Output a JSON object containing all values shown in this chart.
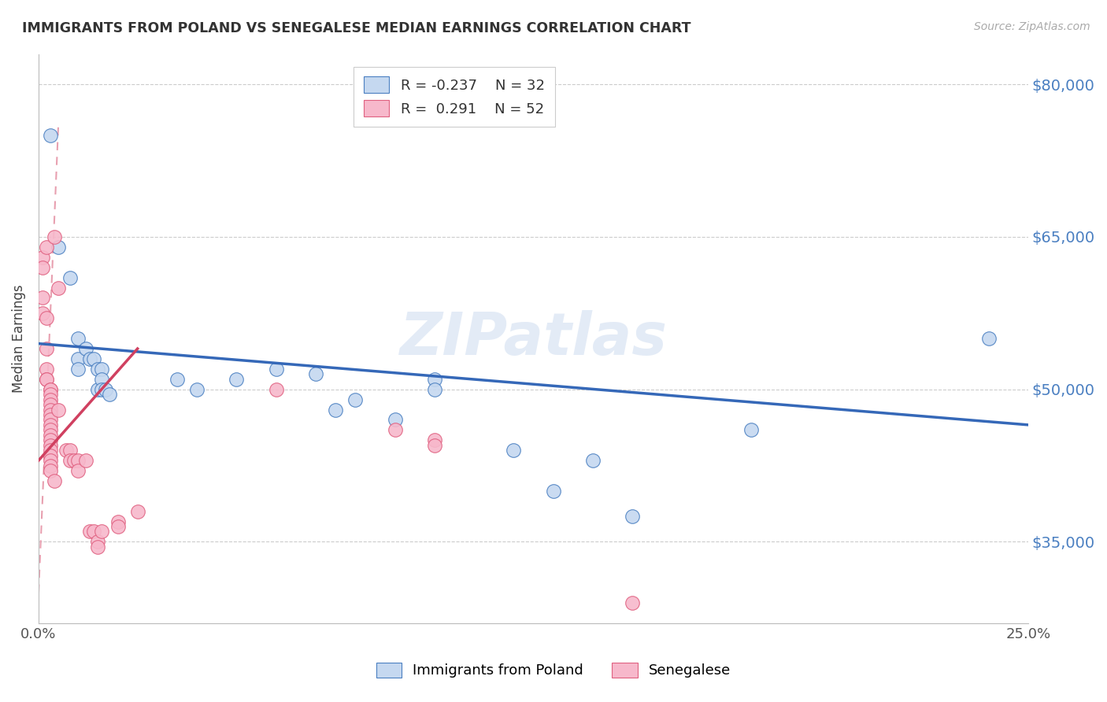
{
  "title": "IMMIGRANTS FROM POLAND VS SENEGALESE MEDIAN EARNINGS CORRELATION CHART",
  "source": "Source: ZipAtlas.com",
  "ylabel": "Median Earnings",
  "yticks": [
    35000,
    50000,
    65000,
    80000
  ],
  "ytick_labels": [
    "$35,000",
    "$50,000",
    "$65,000",
    "$80,000"
  ],
  "legend_blue_r": "R = -0.237",
  "legend_blue_n": "N = 32",
  "legend_pink_r": "R =  0.291",
  "legend_pink_n": "N = 52",
  "watermark": "ZIPatlas",
  "blue_fill": "#c5d8f0",
  "blue_edge": "#4a7fc1",
  "pink_fill": "#f7b8cb",
  "pink_edge": "#e06080",
  "blue_line_color": "#3568b8",
  "pink_line_color": "#d04060",
  "dashed_line_color": "#e8a0b0",
  "blue_scatter": [
    [
      0.003,
      75000
    ],
    [
      0.005,
      64000
    ],
    [
      0.008,
      61000
    ],
    [
      0.01,
      55000
    ],
    [
      0.01,
      53000
    ],
    [
      0.01,
      52000
    ],
    [
      0.012,
      54000
    ],
    [
      0.013,
      53000
    ],
    [
      0.014,
      53000
    ],
    [
      0.015,
      52000
    ],
    [
      0.015,
      50000
    ],
    [
      0.016,
      52000
    ],
    [
      0.016,
      51000
    ],
    [
      0.016,
      50000
    ],
    [
      0.017,
      50000
    ],
    [
      0.018,
      49500
    ],
    [
      0.035,
      51000
    ],
    [
      0.04,
      50000
    ],
    [
      0.05,
      51000
    ],
    [
      0.06,
      52000
    ],
    [
      0.07,
      51500
    ],
    [
      0.075,
      48000
    ],
    [
      0.08,
      49000
    ],
    [
      0.09,
      47000
    ],
    [
      0.1,
      51000
    ],
    [
      0.1,
      50000
    ],
    [
      0.12,
      44000
    ],
    [
      0.13,
      40000
    ],
    [
      0.14,
      43000
    ],
    [
      0.15,
      37500
    ],
    [
      0.18,
      46000
    ],
    [
      0.24,
      55000
    ]
  ],
  "pink_scatter": [
    [
      0.001,
      63000
    ],
    [
      0.001,
      62000
    ],
    [
      0.001,
      59000
    ],
    [
      0.001,
      57500
    ],
    [
      0.002,
      64000
    ],
    [
      0.002,
      57000
    ],
    [
      0.002,
      54000
    ],
    [
      0.002,
      52000
    ],
    [
      0.002,
      51000
    ],
    [
      0.002,
      51000
    ],
    [
      0.003,
      50000
    ],
    [
      0.003,
      50000
    ],
    [
      0.003,
      49500
    ],
    [
      0.003,
      49000
    ],
    [
      0.003,
      48500
    ],
    [
      0.003,
      48000
    ],
    [
      0.003,
      47500
    ],
    [
      0.003,
      47000
    ],
    [
      0.003,
      46500
    ],
    [
      0.003,
      46000
    ],
    [
      0.003,
      45500
    ],
    [
      0.003,
      45000
    ],
    [
      0.003,
      44500
    ],
    [
      0.003,
      44000
    ],
    [
      0.003,
      43500
    ],
    [
      0.003,
      43000
    ],
    [
      0.003,
      42500
    ],
    [
      0.003,
      42000
    ],
    [
      0.004,
      65000
    ],
    [
      0.004,
      41000
    ],
    [
      0.005,
      60000
    ],
    [
      0.005,
      48000
    ],
    [
      0.007,
      44000
    ],
    [
      0.008,
      44000
    ],
    [
      0.008,
      43000
    ],
    [
      0.009,
      43000
    ],
    [
      0.01,
      43000
    ],
    [
      0.01,
      42000
    ],
    [
      0.012,
      43000
    ],
    [
      0.013,
      36000
    ],
    [
      0.014,
      36000
    ],
    [
      0.015,
      35000
    ],
    [
      0.015,
      34500
    ],
    [
      0.016,
      36000
    ],
    [
      0.02,
      37000
    ],
    [
      0.02,
      36500
    ],
    [
      0.025,
      38000
    ],
    [
      0.06,
      50000
    ],
    [
      0.09,
      46000
    ],
    [
      0.1,
      45000
    ],
    [
      0.1,
      44500
    ],
    [
      0.15,
      29000
    ]
  ],
  "blue_trend_x": [
    0.0,
    0.25
  ],
  "blue_trend_y": [
    54500,
    46500
  ],
  "pink_trend_x": [
    0.0,
    0.025
  ],
  "pink_trend_y": [
    43000,
    54000
  ],
  "dashed_trend_x": [
    0.0,
    0.005
  ],
  "dashed_trend_y": [
    30000,
    76000
  ],
  "xmin": 0.0,
  "xmax": 0.25,
  "ymin": 27000,
  "ymax": 83000,
  "background_color": "#ffffff",
  "grid_color": "#cccccc",
  "title_color": "#333333",
  "right_label_color": "#4a7fc1",
  "axis_color": "#bbbbbb"
}
